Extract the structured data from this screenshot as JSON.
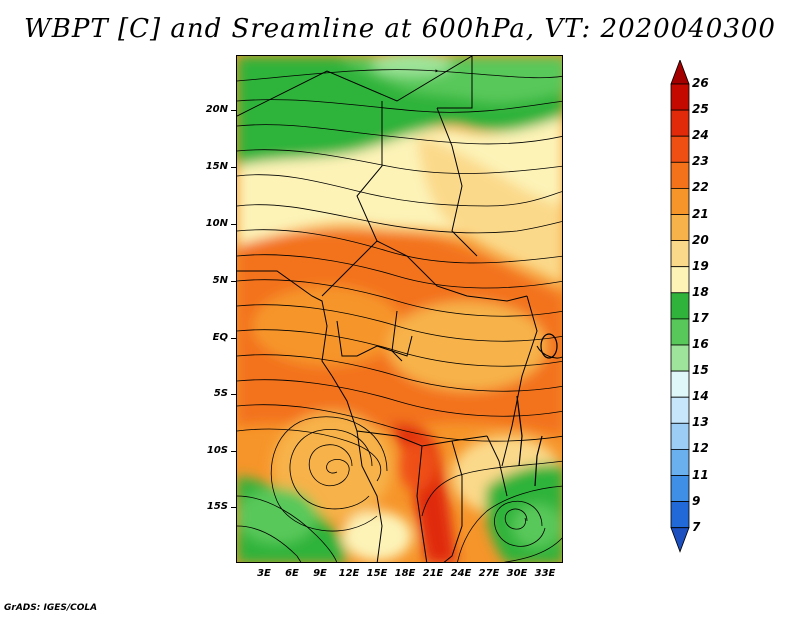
{
  "title": "WBPT [C] and Sreamline at 600hPa, VT: 2020040300",
  "footer": "GrADS: IGES/COLA",
  "map": {
    "lat_labels": [
      "20N",
      "15N",
      "10N",
      "5N",
      "EQ",
      "5S",
      "10S",
      "15S"
    ],
    "lon_labels": [
      "3E",
      "6E",
      "9E",
      "12E",
      "15E",
      "18E",
      "21E",
      "24E",
      "27E",
      "30E",
      "33E"
    ]
  },
  "colorbar": {
    "labels": [
      "26",
      "25",
      "24",
      "23",
      "22",
      "21",
      "20",
      "19",
      "18",
      "17",
      "16",
      "15",
      "14",
      "13",
      "12",
      "11",
      "9",
      "7"
    ],
    "colors": [
      "#a50000",
      "#c40a00",
      "#e02a0a",
      "#ef4f12",
      "#f3721a",
      "#f6952a",
      "#f7b24a",
      "#fbd98a",
      "#fdf3b7",
      "#2fb33a",
      "#59c85a",
      "#9ee49a",
      "#dff7f9",
      "#c7e6fb",
      "#9ccdf5",
      "#6ab0ee",
      "#3f8fe6",
      "#2168d8",
      "#1c4fc0"
    ]
  }
}
